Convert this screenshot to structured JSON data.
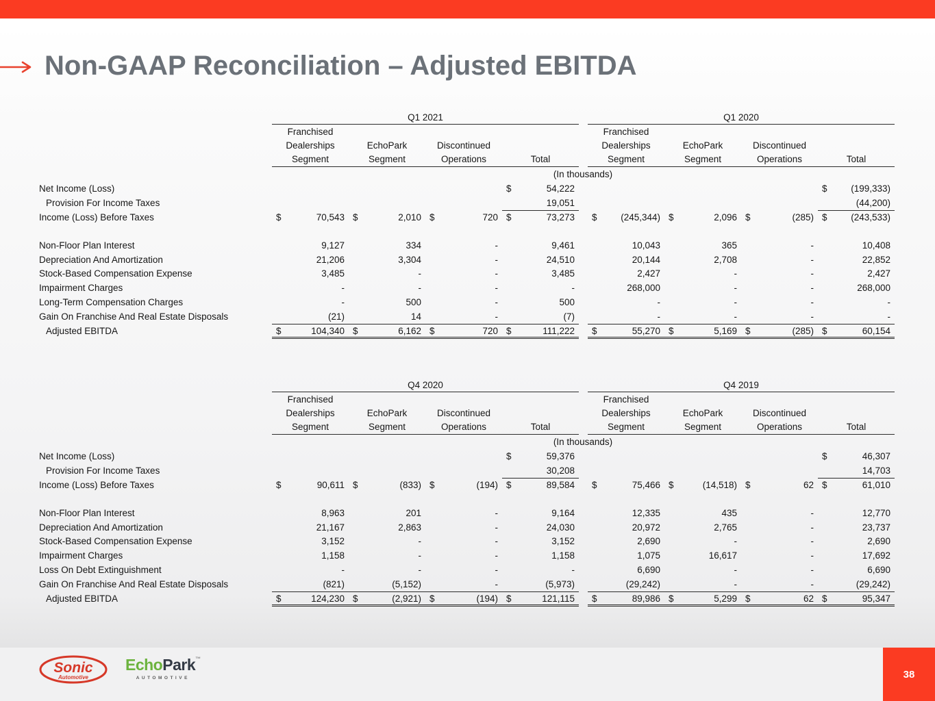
{
  "slide": {
    "title": "Non-GAAP Reconciliation – Adjusted EBITDA",
    "page_number": "38",
    "accent_color": "#fb3b22",
    "title_color": "#6b7178",
    "arrow_color": "#e9422e"
  },
  "footer": {
    "sonic_name": "Sonic",
    "sonic_sub": "Automotive",
    "echopark_green": "Echo",
    "echopark_dark": "Park",
    "echopark_tm": "™",
    "echopark_sub": "AUTOMOTIVE"
  },
  "table_common": {
    "units_note": "(In thousands)",
    "column_header_lines": [
      [
        "Franchised",
        "Dealerships",
        "Segment"
      ],
      [
        "",
        "EchoPark",
        "Segment"
      ],
      [
        "",
        "Discontinued",
        "Operations"
      ],
      [
        "",
        "",
        "Total"
      ]
    ]
  },
  "tables": [
    {
      "left_period": "Q1 2021",
      "right_period": "Q1 2020",
      "rows": [
        {
          "label": "Net Income (Loss)",
          "type": "plain",
          "left": [
            "",
            "",
            "",
            "$ 54,222"
          ],
          "right": [
            "",
            "",
            "",
            "$ (199,333)"
          ]
        },
        {
          "label": "Provision For Income Taxes",
          "indent": true,
          "type": "underline-total",
          "left": [
            "",
            "",
            "",
            "19,051"
          ],
          "right": [
            "",
            "",
            "",
            "(44,200)"
          ]
        },
        {
          "label": "Income (Loss) Before Taxes",
          "type": "plain",
          "left": [
            "$ 70,543",
            "$ 2,010",
            "$ 720",
            "$ 73,273"
          ],
          "right": [
            "$ (245,344)",
            "$ 2,096",
            "$ (285)",
            "$ (243,533)"
          ]
        },
        {
          "label": "",
          "type": "blank",
          "left": [
            "",
            "",
            "",
            ""
          ],
          "right": [
            "",
            "",
            "",
            ""
          ]
        },
        {
          "label": "Non-Floor Plan Interest",
          "type": "plain",
          "left": [
            "9,127",
            "334",
            "-",
            "9,461"
          ],
          "right": [
            "10,043",
            "365",
            "-",
            "10,408"
          ]
        },
        {
          "label": "Depreciation And Amortization",
          "type": "plain",
          "left": [
            "21,206",
            "3,304",
            "-",
            "24,510"
          ],
          "right": [
            "20,144",
            "2,708",
            "-",
            "22,852"
          ]
        },
        {
          "label": "Stock-Based Compensation Expense",
          "type": "plain",
          "left": [
            "3,485",
            "-",
            "-",
            "3,485"
          ],
          "right": [
            "2,427",
            "-",
            "-",
            "2,427"
          ]
        },
        {
          "label": "Impairment Charges",
          "type": "plain",
          "left": [
            "-",
            "-",
            "-",
            "-"
          ],
          "right": [
            "268,000",
            "-",
            "-",
            "268,000"
          ]
        },
        {
          "label": "Long-Term Compensation Charges",
          "type": "plain",
          "left": [
            "-",
            "500",
            "-",
            "500"
          ],
          "right": [
            "-",
            "-",
            "-",
            "-"
          ]
        },
        {
          "label": "Gain On Franchise And Real Estate Disposals",
          "type": "underline-all",
          "left": [
            "(21)",
            "14",
            "-",
            "(7)"
          ],
          "right": [
            "-",
            "-",
            "-",
            "-"
          ]
        },
        {
          "label": "Adjusted EBITDA",
          "indent": true,
          "type": "total",
          "left": [
            "$ 104,340",
            "$ 6,162",
            "$ 720",
            "$ 111,222"
          ],
          "right": [
            "$ 55,270",
            "$ 5,169",
            "$ (285)",
            "$ 60,154"
          ]
        }
      ]
    },
    {
      "left_period": "Q4 2020",
      "right_period": "Q4 2019",
      "rows": [
        {
          "label": "Net Income (Loss)",
          "type": "plain",
          "left": [
            "",
            "",
            "",
            "$ 59,376"
          ],
          "right": [
            "",
            "",
            "",
            "$ 46,307"
          ]
        },
        {
          "label": "Provision For Income Taxes",
          "indent": true,
          "type": "underline-total",
          "left": [
            "",
            "",
            "",
            "30,208"
          ],
          "right": [
            "",
            "",
            "",
            "14,703"
          ]
        },
        {
          "label": "Income (Loss) Before Taxes",
          "type": "plain",
          "left": [
            "$ 90,611",
            "$ (833)",
            "$ (194)",
            "$ 89,584"
          ],
          "right": [
            "$ 75,466",
            "$ (14,518)",
            "$ 62",
            "$ 61,010"
          ]
        },
        {
          "label": "",
          "type": "blank",
          "left": [
            "",
            "",
            "",
            ""
          ],
          "right": [
            "",
            "",
            "",
            ""
          ]
        },
        {
          "label": "Non-Floor Plan Interest",
          "type": "plain",
          "left": [
            "8,963",
            "201",
            "-",
            "9,164"
          ],
          "right": [
            "12,335",
            "435",
            "-",
            "12,770"
          ]
        },
        {
          "label": "Depreciation And Amortization",
          "type": "plain",
          "left": [
            "21,167",
            "2,863",
            "-",
            "24,030"
          ],
          "right": [
            "20,972",
            "2,765",
            "-",
            "23,737"
          ]
        },
        {
          "label": "Stock-Based Compensation Expense",
          "type": "plain",
          "left": [
            "3,152",
            "-",
            "-",
            "3,152"
          ],
          "right": [
            "2,690",
            "-",
            "-",
            "2,690"
          ]
        },
        {
          "label": "Impairment Charges",
          "type": "plain",
          "left": [
            "1,158",
            "-",
            "-",
            "1,158"
          ],
          "right": [
            "1,075",
            "16,617",
            "-",
            "17,692"
          ]
        },
        {
          "label": "Loss On Debt Extinguishment",
          "type": "plain",
          "left": [
            "-",
            "-",
            "-",
            "-"
          ],
          "right": [
            "6,690",
            "-",
            "-",
            "6,690"
          ]
        },
        {
          "label": "Gain On Franchise And Real Estate Disposals",
          "type": "underline-all",
          "left": [
            "(821)",
            "(5,152)",
            "-",
            "(5,973)"
          ],
          "right": [
            "(29,242)",
            "-",
            "-",
            "(29,242)"
          ]
        },
        {
          "label": "Adjusted EBITDA",
          "indent": true,
          "type": "total",
          "left": [
            "$ 124,230",
            "$ (2,921)",
            "$ (194)",
            "$ 121,115"
          ],
          "right": [
            "$ 89,986",
            "$ 5,299",
            "$ 62",
            "$ 95,347"
          ]
        }
      ]
    }
  ]
}
